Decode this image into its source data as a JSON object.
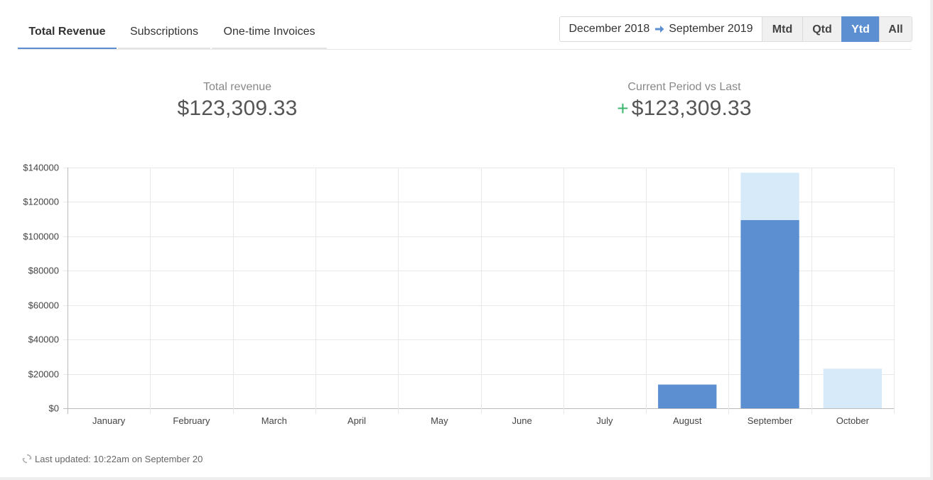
{
  "tabs": [
    {
      "label": "Total Revenue",
      "active": true
    },
    {
      "label": "Subscriptions",
      "active": false
    },
    {
      "label": "One-time Invoices",
      "active": false
    }
  ],
  "date_range": {
    "start": "December 2018",
    "end": "September 2019"
  },
  "period_buttons": [
    {
      "label": "Mtd",
      "active": false
    },
    {
      "label": "Qtd",
      "active": false
    },
    {
      "label": "Ytd",
      "active": true
    },
    {
      "label": "All",
      "active": false
    }
  ],
  "stats": {
    "total_label": "Total revenue",
    "total_value": "$123,309.33",
    "compare_label": "Current Period vs Last",
    "compare_sign": "+",
    "compare_value": "$123,309.33"
  },
  "footer": {
    "last_updated": "Last updated: 10:22am on September 20"
  },
  "colors": {
    "accent": "#5b8fd2",
    "bar_dark": "#5b8fd2",
    "bar_light": "#d6eaf9",
    "positive": "#3cb66e"
  },
  "chart_data": {
    "type": "bar",
    "stacked": true,
    "categories": [
      "January",
      "February",
      "March",
      "April",
      "May",
      "June",
      "July",
      "August",
      "September",
      "October"
    ],
    "series": [
      {
        "color": "#5b8fd2",
        "values": [
          0,
          0,
          0,
          0,
          0,
          0,
          0,
          13800,
          109500,
          0
        ]
      },
      {
        "color": "#d6eaf9",
        "values": [
          0,
          0,
          0,
          0,
          0,
          0,
          0,
          0,
          27500,
          23000
        ]
      }
    ],
    "ylim": [
      0,
      140000
    ],
    "yticks": [
      0,
      20000,
      40000,
      60000,
      80000,
      100000,
      120000,
      140000
    ],
    "ytick_labels": [
      "$0",
      "$20000",
      "$40000",
      "$60000",
      "$80000",
      "$100000",
      "$120000",
      "$140000"
    ],
    "grid": true
  }
}
